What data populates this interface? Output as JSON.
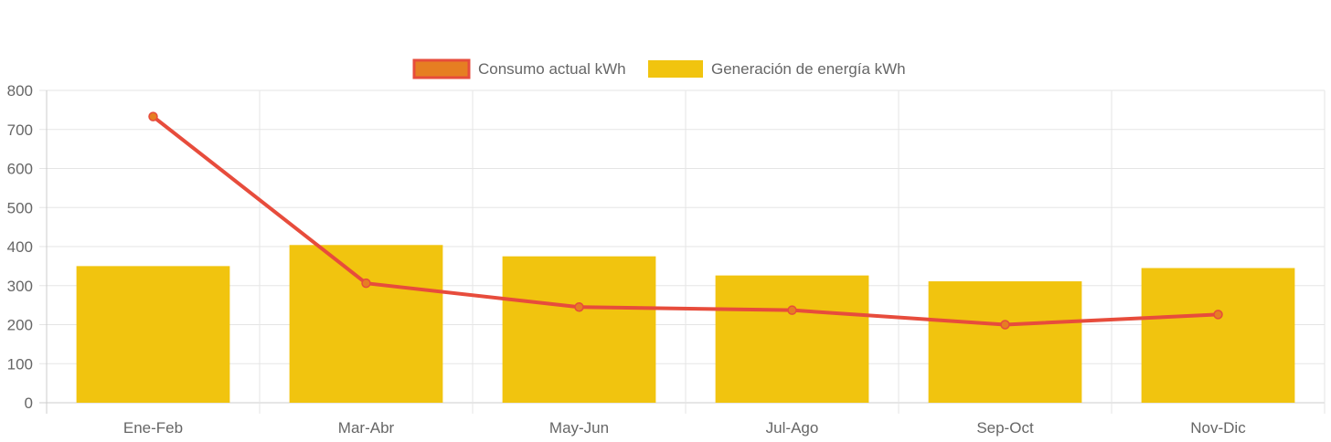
{
  "chart_data": {
    "type": "bar",
    "categories": [
      "Ene-Feb",
      "Mar-Abr",
      "May-Jun",
      "Jul-Ago",
      "Sep-Oct",
      "Nov-Dic"
    ],
    "series": [
      {
        "name": "Consumo actual kWh",
        "type": "line",
        "values": [
          733,
          306,
          245,
          237,
          200,
          226
        ],
        "color": "#e74c3c",
        "point_fill": "#e67e22"
      },
      {
        "name": "Generación de energía kWh",
        "type": "bar",
        "values": [
          350,
          404,
          375,
          326,
          311,
          345
        ],
        "color": "#f1c40f"
      }
    ],
    "ylim": [
      0,
      800
    ],
    "yticks": [
      "0",
      "100",
      "200",
      "300",
      "400",
      "500",
      "600",
      "700",
      "800"
    ],
    "grid": true,
    "legend_position": "top"
  },
  "colors": {
    "grid": "#e5e5e5",
    "axis": "#cccccc",
    "text": "#666666"
  }
}
